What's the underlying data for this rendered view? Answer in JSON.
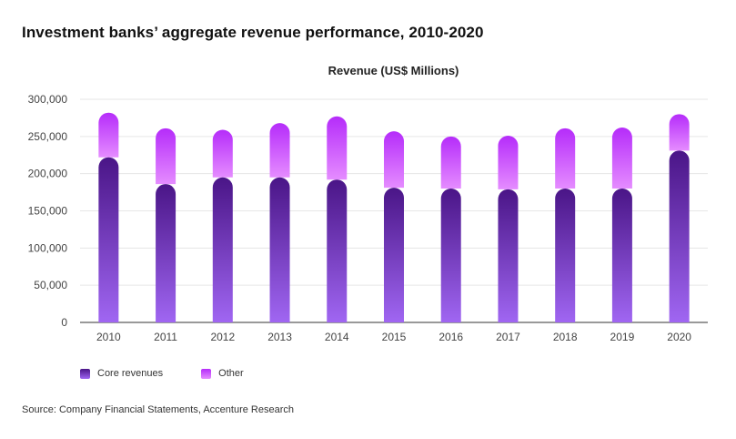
{
  "title": "Investment banks’ aggregate revenue performance, 2010-2020",
  "source": "Source: Company Financial Statements, Accenture Research",
  "colors": {
    "core": "#5c1f9e",
    "core_light": "#9b5ff0",
    "other": "#c238ff",
    "other_light": "#e37bff"
  },
  "chart_data": {
    "type": "bar",
    "stacked": true,
    "title": "Revenue (US$ Millions)",
    "xlabel": "",
    "ylabel": "",
    "ylim": [
      0,
      300000
    ],
    "yticks": [
      0,
      50000,
      100000,
      150000,
      200000,
      250000,
      300000
    ],
    "ytick_labels": [
      "0",
      "50,000",
      "100,000",
      "150,000",
      "200,000",
      "250,000",
      "300,000"
    ],
    "grid": true,
    "legend_position": "bottom-left",
    "categories": [
      "2010",
      "2011",
      "2012",
      "2013",
      "2014",
      "2015",
      "2016",
      "2017",
      "2018",
      "2019",
      "2020"
    ],
    "series": [
      {
        "name": "Core revenues",
        "values": [
          222000,
          186000,
          195000,
          195000,
          192000,
          181000,
          180000,
          179000,
          180000,
          180000,
          231000
        ]
      },
      {
        "name": "Other",
        "values": [
          60000,
          75000,
          64000,
          73000,
          85000,
          76000,
          70000,
          72000,
          81000,
          82000,
          49000
        ]
      }
    ]
  }
}
